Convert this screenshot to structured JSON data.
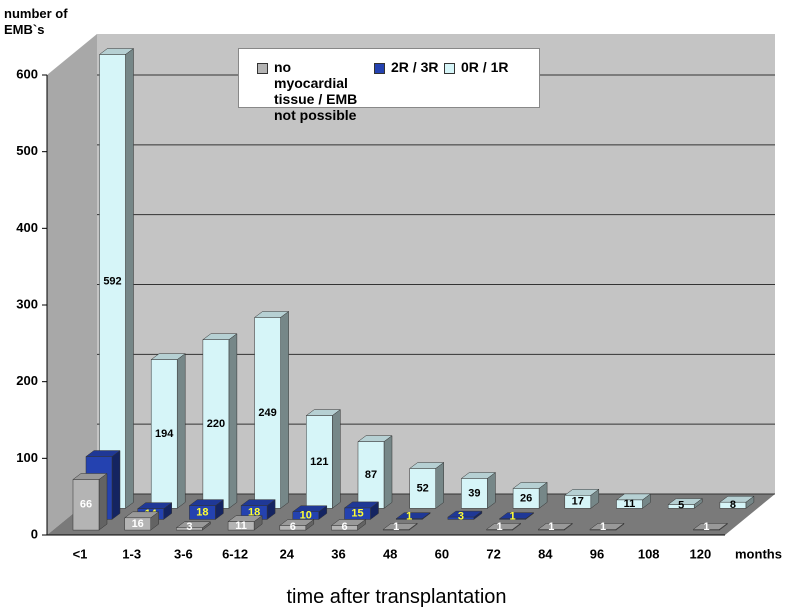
{
  "chart_data": {
    "type": "bar3d",
    "categories": [
      "<1",
      "1-3",
      "3-6",
      "6-12",
      "24",
      "36",
      "48",
      "60",
      "72",
      "84",
      "96",
      "108",
      "120"
    ],
    "x_unit": "months",
    "xlabel": "time after transplantation",
    "ylabel": "number of EMB`s",
    "series": [
      {
        "name": "no myocardial tissue / EMB not possible",
        "color": "#b4b4b4",
        "label_color": "#ffffff",
        "values": [
          66,
          16,
          3,
          11,
          6,
          6,
          1,
          null,
          1,
          1,
          1,
          null,
          1
        ]
      },
      {
        "name": "2R / 3R",
        "color": "#2442b0",
        "label_color": "#ffff33",
        "values": [
          82,
          14,
          18,
          18,
          10,
          15,
          1,
          3,
          1,
          null,
          null,
          null,
          null
        ]
      },
      {
        "name": "0R / 1R",
        "color": "#d6f5f8",
        "label_color": "#000000",
        "values": [
          592,
          194,
          220,
          249,
          121,
          87,
          52,
          39,
          26,
          17,
          11,
          5,
          8
        ]
      }
    ],
    "ylim": [
      0,
      600
    ],
    "yticks": [
      0,
      100,
      200,
      300,
      400,
      500,
      600
    ],
    "grid": true
  }
}
